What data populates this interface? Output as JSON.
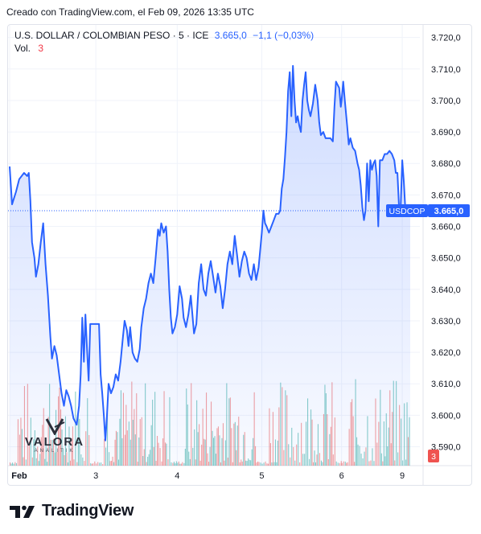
{
  "caption": "Creado con TradingView.com, el Feb 09, 2026 13:35 UTC",
  "legend": {
    "symbol": "U.S. DOLLAR / COLOMBIAN PESO · 5 · ICE",
    "price": "3.665,0",
    "change": "−1,1 (−0,03%)",
    "vol_label": "Vol.",
    "vol_value": "3"
  },
  "price_tag": {
    "symbol": "USDCOP",
    "value": "3.665,0"
  },
  "volume_tag": "3",
  "watermark": {
    "name": "VALORA",
    "sub": "ANALITIK"
  },
  "brand": "TradingView",
  "colors": {
    "line": "#2962ff",
    "fill": "#2962ff",
    "vol_up": "#26a69a",
    "vol_down": "#ef5350",
    "tag": "#2962ff"
  },
  "chart_data": {
    "type": "area",
    "title": "U.S. DOLLAR / COLOMBIAN PESO · 5 · ICE",
    "x_tick_labels": [
      "Feb",
      "3",
      "4",
      "5",
      "6",
      "9"
    ],
    "y_tick_labels": [
      "3.590,0",
      "3.600,0",
      "3.610,0",
      "3.620,0",
      "3.630,0",
      "3.640,0",
      "3.650,0",
      "3.660,0",
      "3.670,0",
      "3.680,0",
      "3.690,0",
      "3.700,0",
      "3.710,0",
      "3.720,0"
    ],
    "ylim": [
      3584,
      3724
    ],
    "last_value": 3665.0,
    "grid": true,
    "x_session_ticks": [
      0,
      108,
      210,
      316,
      416,
      492
    ],
    "series": [
      {
        "values": [
          [
            0,
            3679
          ],
          [
            3,
            3667
          ],
          [
            8,
            3671
          ],
          [
            12,
            3675
          ],
          [
            18,
            3677
          ],
          [
            22,
            3676
          ],
          [
            24,
            3677
          ],
          [
            26,
            3668
          ],
          [
            28,
            3655
          ],
          [
            31,
            3650
          ],
          [
            33,
            3644
          ],
          [
            36,
            3648
          ],
          [
            39,
            3655
          ],
          [
            42,
            3661
          ],
          [
            45,
            3648
          ],
          [
            48,
            3638
          ],
          [
            51,
            3625
          ],
          [
            53,
            3618
          ],
          [
            56,
            3622
          ],
          [
            59,
            3619
          ],
          [
            62,
            3613
          ],
          [
            65,
            3607
          ],
          [
            68,
            3603
          ],
          [
            71,
            3608
          ],
          [
            74,
            3606
          ],
          [
            77,
            3603
          ],
          [
            80,
            3599
          ],
          [
            84,
            3597
          ],
          [
            87,
            3603
          ],
          [
            89,
            3613
          ],
          [
            91,
            3631
          ],
          [
            93,
            3617
          ],
          [
            95,
            3632
          ],
          [
            97,
            3621
          ],
          [
            99,
            3611
          ],
          [
            101,
            3629
          ],
          [
            104,
            3629
          ],
          [
            108,
            3629
          ],
          [
            112,
            3629
          ],
          [
            114,
            3613
          ],
          [
            116,
            3607
          ],
          [
            118,
            3600
          ],
          [
            120,
            3592
          ],
          [
            122,
            3600
          ],
          [
            124,
            3610
          ],
          [
            127,
            3607
          ],
          [
            130,
            3609
          ],
          [
            133,
            3613
          ],
          [
            136,
            3611
          ],
          [
            139,
            3617
          ],
          [
            142,
            3625
          ],
          [
            144,
            3630
          ],
          [
            147,
            3627
          ],
          [
            149,
            3622
          ],
          [
            151,
            3628
          ],
          [
            154,
            3620
          ],
          [
            157,
            3618
          ],
          [
            160,
            3617
          ],
          [
            163,
            3621
          ],
          [
            165,
            3628
          ],
          [
            168,
            3634
          ],
          [
            171,
            3637
          ],
          [
            174,
            3642
          ],
          [
            177,
            3645
          ],
          [
            180,
            3642
          ],
          [
            183,
            3650
          ],
          [
            186,
            3659
          ],
          [
            188,
            3657
          ],
          [
            190,
            3661
          ],
          [
            193,
            3658
          ],
          [
            196,
            3660
          ],
          [
            198,
            3652
          ],
          [
            200,
            3640
          ],
          [
            202,
            3631
          ],
          [
            204,
            3626
          ],
          [
            207,
            3628
          ],
          [
            210,
            3632
          ],
          [
            213,
            3641
          ],
          [
            216,
            3637
          ],
          [
            218,
            3631
          ],
          [
            221,
            3628
          ],
          [
            224,
            3632
          ],
          [
            227,
            3638
          ],
          [
            229,
            3632
          ],
          [
            231,
            3626
          ],
          [
            234,
            3629
          ],
          [
            237,
            3642
          ],
          [
            240,
            3648
          ],
          [
            243,
            3640
          ],
          [
            246,
            3638
          ],
          [
            249,
            3645
          ],
          [
            252,
            3649
          ],
          [
            255,
            3644
          ],
          [
            258,
            3639
          ],
          [
            261,
            3645
          ],
          [
            264,
            3641
          ],
          [
            267,
            3634
          ],
          [
            270,
            3640
          ],
          [
            273,
            3648
          ],
          [
            276,
            3652
          ],
          [
            279,
            3648
          ],
          [
            282,
            3657
          ],
          [
            285,
            3651
          ],
          [
            288,
            3644
          ],
          [
            291,
            3649
          ],
          [
            294,
            3652
          ],
          [
            297,
            3650
          ],
          [
            300,
            3645
          ],
          [
            303,
            3643
          ],
          [
            306,
            3648
          ],
          [
            309,
            3643
          ],
          [
            312,
            3647
          ],
          [
            316,
            3658
          ],
          [
            318,
            3665
          ],
          [
            320,
            3661
          ],
          [
            322,
            3660
          ],
          [
            325,
            3658
          ],
          [
            328,
            3660
          ],
          [
            331,
            3662
          ],
          [
            334,
            3664
          ],
          [
            337,
            3664
          ],
          [
            339,
            3665
          ],
          [
            341,
            3672
          ],
          [
            343,
            3675
          ],
          [
            345,
            3682
          ],
          [
            347,
            3690
          ],
          [
            349,
            3703
          ],
          [
            351,
            3709
          ],
          [
            353,
            3695
          ],
          [
            355,
            3711
          ],
          [
            357,
            3700
          ],
          [
            359,
            3693
          ],
          [
            361,
            3695
          ],
          [
            363,
            3692
          ],
          [
            365,
            3690
          ],
          [
            367,
            3700
          ],
          [
            369,
            3705
          ],
          [
            371,
            3709
          ],
          [
            373,
            3700
          ],
          [
            375,
            3697
          ],
          [
            377,
            3695
          ],
          [
            380,
            3699
          ],
          [
            383,
            3705
          ],
          [
            386,
            3700
          ],
          [
            388,
            3693
          ],
          [
            390,
            3689
          ],
          [
            393,
            3690
          ],
          [
            396,
            3688
          ],
          [
            399,
            3688
          ],
          [
            402,
            3688
          ],
          [
            405,
            3687
          ],
          [
            407,
            3698
          ],
          [
            409,
            3706
          ],
          [
            411,
            3705
          ],
          [
            413,
            3704
          ],
          [
            415,
            3698
          ],
          [
            416,
            3700
          ],
          [
            418,
            3706
          ],
          [
            420,
            3700
          ],
          [
            423,
            3692
          ],
          [
            425,
            3686
          ],
          [
            427,
            3688
          ],
          [
            430,
            3685
          ],
          [
            433,
            3684
          ],
          [
            436,
            3680
          ],
          [
            438,
            3678
          ],
          [
            440,
            3673
          ],
          [
            442,
            3666
          ],
          [
            444,
            3662
          ],
          [
            446,
            3665
          ],
          [
            448,
            3680
          ],
          [
            450,
            3668
          ],
          [
            452,
            3681
          ],
          [
            454,
            3678
          ],
          [
            456,
            3680
          ],
          [
            458,
            3681
          ],
          [
            460,
            3676
          ],
          [
            462,
            3660
          ],
          [
            464,
            3681
          ],
          [
            467,
            3681
          ],
          [
            470,
            3683
          ],
          [
            473,
            3683
          ],
          [
            476,
            3684
          ],
          [
            479,
            3683
          ],
          [
            482,
            3681
          ],
          [
            484,
            3677
          ],
          [
            486,
            3677
          ],
          [
            488,
            3666
          ],
          [
            490,
            3666
          ],
          [
            492,
            3681
          ],
          [
            494,
            3674
          ],
          [
            496,
            3665
          ],
          [
            499,
            3666
          ],
          [
            502,
            3665
          ]
        ]
      }
    ]
  }
}
